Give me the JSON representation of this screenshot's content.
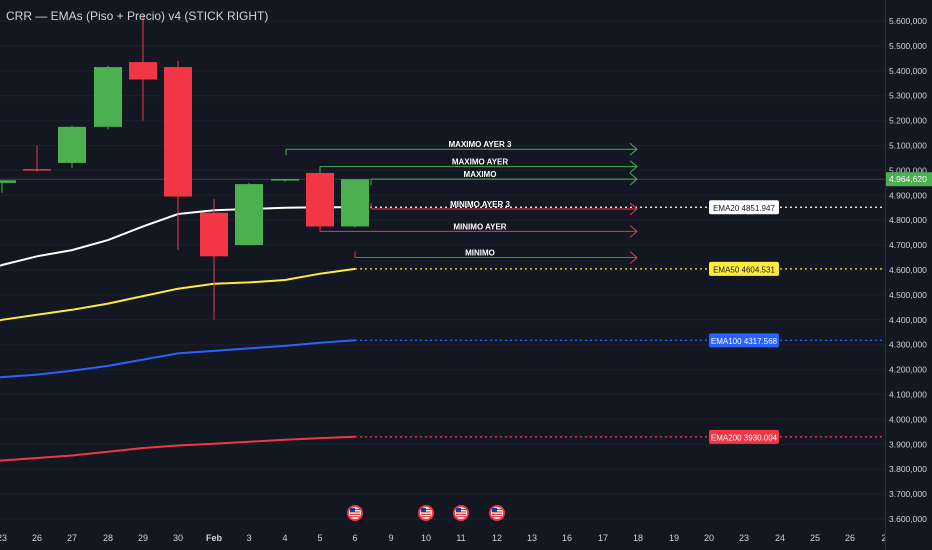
{
  "header": {
    "title": "CRR — EMAs (Piso + Precio) v4 (STICK RIGHT)"
  },
  "colors": {
    "background": "#131722",
    "up": "#4caf50",
    "down": "#f23645",
    "ema20": "#ffffff",
    "ema50": "#ffeb3b",
    "ema100": "#2962ff",
    "ema200": "#f23645",
    "text": "#d1d4dc"
  },
  "chart_data": {
    "type": "candlestick",
    "title": "CRR — EMAs (Piso + Precio) v4 (STICK RIGHT)",
    "ylim": [
      3550000,
      5700000
    ],
    "y_ticks": [
      "5.600,000",
      "5.500,000",
      "5.400,000",
      "5.300,000",
      "5.200,000",
      "5.100,000",
      "5.000,000",
      "4.900,000",
      "4.800,000",
      "4.700,000",
      "4.600,000",
      "4.500,000",
      "4.400,000",
      "4.300,000",
      "4.200,000",
      "4.100,000",
      "4.000,000",
      "3.900,000",
      "3.800,000",
      "3.700,000",
      "3.600,000"
    ],
    "y_tick_values": [
      5600000,
      5500000,
      5400000,
      5300000,
      5200000,
      5100000,
      5000000,
      4900000,
      4800000,
      4700000,
      4600000,
      4500000,
      4400000,
      4300000,
      4200000,
      4100000,
      4000000,
      3900000,
      3800000,
      3700000,
      3600000
    ],
    "x_labels": [
      "23",
      "26",
      "27",
      "28",
      "29",
      "30",
      "Feb",
      "3",
      "4",
      "5",
      "6",
      "9",
      "10",
      "11",
      "12",
      "13",
      "16",
      "17",
      "18",
      "19",
      "20",
      "23",
      "24",
      "25",
      "26",
      "2"
    ],
    "candles": [
      {
        "o": 4950000,
        "h": 4960000,
        "l": 4910000,
        "c": 4960000
      },
      {
        "o": 5005000,
        "h": 5100000,
        "l": 4995000,
        "c": 5000000
      },
      {
        "o": 5030000,
        "h": 5180000,
        "l": 5010000,
        "c": 5175000
      },
      {
        "o": 5175000,
        "h": 5420000,
        "l": 5165000,
        "c": 5415000
      },
      {
        "o": 5435000,
        "h": 5625000,
        "l": 5200000,
        "c": 5365000
      },
      {
        "o": 5415000,
        "h": 5440000,
        "l": 4680000,
        "c": 4895000
      },
      {
        "o": 4830000,
        "h": 4885000,
        "l": 4400000,
        "c": 4655000
      },
      {
        "o": 4700000,
        "h": 4950000,
        "l": 4700000,
        "c": 4945000
      },
      {
        "o": 4960000,
        "h": 4965000,
        "l": 4955000,
        "c": 4965000
      },
      {
        "o": 4990000,
        "h": 5005000,
        "l": 4755000,
        "c": 4775000
      },
      {
        "o": 4775000,
        "h": 4965000,
        "l": 4770000,
        "c": 4964620
      }
    ],
    "ema_series": [
      {
        "name": "EMA20",
        "label": "EMA20  4851.947",
        "values": [
          4620000,
          4655000,
          4680000,
          4720000,
          4775000,
          4825000,
          4840000,
          4845000,
          4850000,
          4852000,
          4851947
        ]
      },
      {
        "name": "EMA50",
        "label": "EMA50  4604.531",
        "values": [
          4400000,
          4420000,
          4440000,
          4465000,
          4495000,
          4525000,
          4545000,
          4550000,
          4560000,
          4585000,
          4604531
        ]
      },
      {
        "name": "EMA100",
        "label": "EMA100 4317.568",
        "values": [
          4170000,
          4180000,
          4195000,
          4215000,
          4240000,
          4265000,
          4275000,
          4285000,
          4295000,
          4308000,
          4317568
        ]
      },
      {
        "name": "EMA200",
        "label": "EMA200 3930.004",
        "values": [
          3835000,
          3845000,
          3855000,
          3870000,
          3885000,
          3895000,
          3902000,
          3910000,
          3918000,
          3925000,
          3930004
        ]
      }
    ],
    "levels": [
      {
        "label": "MAXIMO AYER 3",
        "price": 5085000,
        "color": "#4caf50"
      },
      {
        "label": "MAXIMO AYER",
        "price": 5015000,
        "color": "#4caf50"
      },
      {
        "label": "MAXIMO",
        "price": 4965000,
        "color": "#4caf50"
      },
      {
        "label": "MINIMO AYER 3",
        "price": 4845000,
        "color": "#f23645"
      },
      {
        "label": "MINIMO AYER",
        "price": 4755000,
        "color": "#f23645"
      },
      {
        "label": "MINIMO",
        "price": 4650000,
        "color": "#f23645"
      }
    ],
    "last_price_label": "4.964,620",
    "last_price": 4964620,
    "event_flags_at": [
      "6",
      "10",
      "11",
      "12"
    ]
  }
}
